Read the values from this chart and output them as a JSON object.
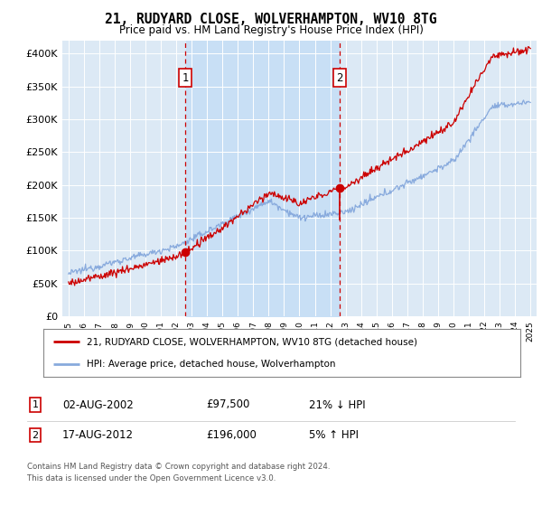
{
  "title": "21, RUDYARD CLOSE, WOLVERHAMPTON, WV10 8TG",
  "subtitle": "Price paid vs. HM Land Registry's House Price Index (HPI)",
  "bg_color": "#dce9f5",
  "ylim": [
    0,
    420000
  ],
  "yticks": [
    0,
    50000,
    100000,
    150000,
    200000,
    250000,
    300000,
    350000,
    400000
  ],
  "ytick_labels": [
    "£0",
    "£50K",
    "£100K",
    "£150K",
    "£200K",
    "£250K",
    "£300K",
    "£350K",
    "£400K"
  ],
  "sale1_price": 97500,
  "sale1_x": 2002.58,
  "sale1_label": "1",
  "sale2_price": 196000,
  "sale2_x": 2012.62,
  "sale2_label": "2",
  "sale2_prev_price": 147000,
  "line_sold_color": "#cc0000",
  "line_hpi_color": "#88aadd",
  "shade_color": "#c8dff5",
  "legend_sold_label": "21, RUDYARD CLOSE, WOLVERHAMPTON, WV10 8TG (detached house)",
  "legend_hpi_label": "HPI: Average price, detached house, Wolverhampton",
  "footer1": "Contains HM Land Registry data © Crown copyright and database right 2024.",
  "footer2": "This data is licensed under the Open Government Licence v3.0.",
  "table_rows": [
    {
      "num": "1",
      "date": "02-AUG-2002",
      "price": "£97,500",
      "pct": "21% ↓ HPI"
    },
    {
      "num": "2",
      "date": "17-AUG-2012",
      "price": "£196,000",
      "pct": "5% ↑ HPI"
    }
  ]
}
